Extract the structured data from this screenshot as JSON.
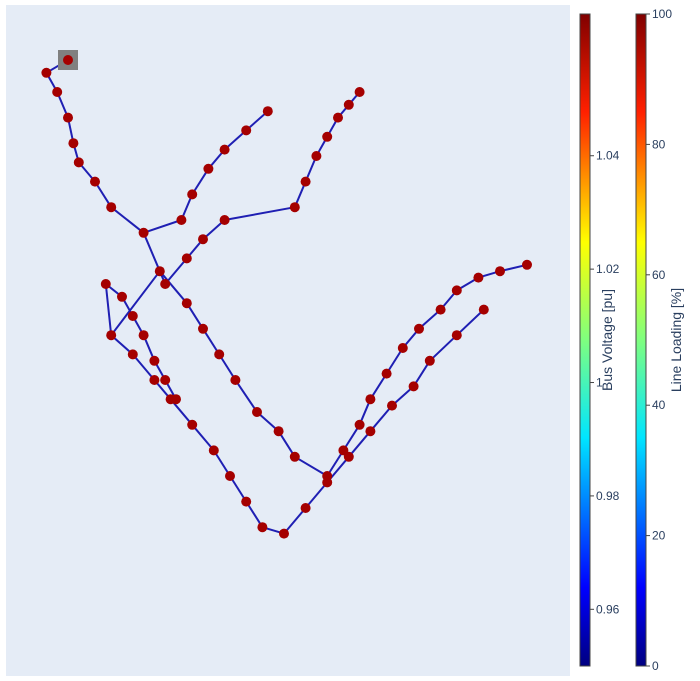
{
  "chart_data": {
    "type": "scatter",
    "title": "",
    "xlabel": "",
    "ylabel": "",
    "grid": false,
    "background": "#e5ecf6",
    "line_color": "#1f1fb3",
    "bus_color": "#a50000",
    "ext_grid_color": "#808080",
    "series": [
      {
        "name": "",
        "kind": "ext_grid",
        "x": [
          0.1
        ],
        "y": [
          0.95
        ],
        "value": 1.06
      },
      {
        "name": "",
        "kind": "buses",
        "x": [
          0.06,
          0.08,
          0.1,
          0.11,
          0.12,
          0.15,
          0.18,
          0.24,
          0.27,
          0.32,
          0.35,
          0.38,
          0.41,
          0.45,
          0.49,
          0.52,
          0.58,
          0.61,
          0.64,
          0.66,
          0.69,
          0.72,
          0.75,
          0.79,
          0.82,
          0.86,
          0.9,
          0.95,
          0.18,
          0.22,
          0.26,
          0.29,
          0.33,
          0.37,
          0.4,
          0.43,
          0.46,
          0.31,
          0.33,
          0.36,
          0.39,
          0.43,
          0.47,
          0.28,
          0.32,
          0.35,
          0.39,
          0.5,
          0.54,
          0.58,
          0.62,
          0.66,
          0.7,
          0.74,
          0.77,
          0.82,
          0.87,
          0.17,
          0.2,
          0.22,
          0.24,
          0.26,
          0.28,
          0.3,
          0.52,
          0.54,
          0.56,
          0.58,
          0.6,
          0.62,
          0.64
        ],
        "y": [
          0.93,
          0.9,
          0.86,
          0.82,
          0.79,
          0.76,
          0.72,
          0.68,
          0.62,
          0.57,
          0.53,
          0.49,
          0.45,
          0.4,
          0.37,
          0.33,
          0.3,
          0.34,
          0.38,
          0.42,
          0.46,
          0.5,
          0.53,
          0.56,
          0.59,
          0.61,
          0.62,
          0.63,
          0.52,
          0.49,
          0.45,
          0.42,
          0.38,
          0.34,
          0.3,
          0.26,
          0.22,
          0.7,
          0.74,
          0.78,
          0.81,
          0.84,
          0.87,
          0.6,
          0.64,
          0.67,
          0.7,
          0.21,
          0.25,
          0.29,
          0.33,
          0.37,
          0.41,
          0.44,
          0.48,
          0.52,
          0.56,
          0.6,
          0.58,
          0.55,
          0.52,
          0.48,
          0.45,
          0.42,
          0.72,
          0.76,
          0.8,
          0.83,
          0.86,
          0.88,
          0.9
        ],
        "value": 1.06
      }
    ],
    "colorbars": [
      {
        "title": "Bus Voltage [pu]",
        "range": [
          0.95,
          1.065
        ],
        "ticks": [
          "0.96",
          "0.98",
          "1",
          "1.02",
          "1.04"
        ],
        "tick_values": [
          0.96,
          0.98,
          1.0,
          1.02,
          1.04
        ],
        "colorscale": "jet"
      },
      {
        "title": "Line Loading [%]",
        "range": [
          0,
          100
        ],
        "ticks": [
          "0",
          "20",
          "40",
          "60",
          "80",
          "100"
        ],
        "tick_values": [
          0,
          20,
          40,
          60,
          80,
          100
        ],
        "colorscale": "jet"
      }
    ]
  }
}
